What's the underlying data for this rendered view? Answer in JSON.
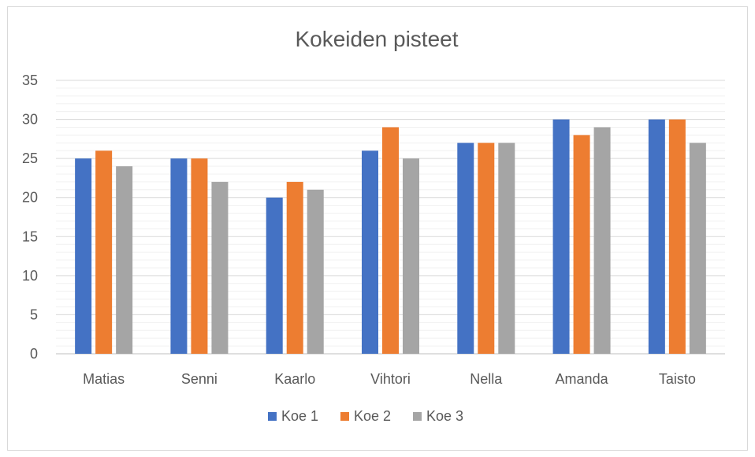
{
  "chart_data": {
    "type": "bar",
    "title": "Kokeiden pisteet",
    "categories": [
      "Matias",
      "Senni",
      "Kaarlo",
      "Vihtori",
      "Nella",
      "Amanda",
      "Taisto"
    ],
    "series": [
      {
        "name": "Koe 1",
        "color": "#4472C4",
        "values": [
          25,
          25,
          20,
          26,
          27,
          30,
          30
        ]
      },
      {
        "name": "Koe 2",
        "color": "#ED7D31",
        "values": [
          26,
          25,
          22,
          29,
          27,
          28,
          30
        ]
      },
      {
        "name": "Koe 3",
        "color": "#A5A5A5",
        "values": [
          24,
          22,
          21,
          25,
          27,
          29,
          27
        ]
      }
    ],
    "ylim": [
      0,
      35
    ],
    "yticks": [
      0,
      5,
      10,
      15,
      20,
      25,
      30,
      35
    ],
    "minor_gridlines": true,
    "legend_position": "bottom",
    "xlabel": "",
    "ylabel": ""
  }
}
